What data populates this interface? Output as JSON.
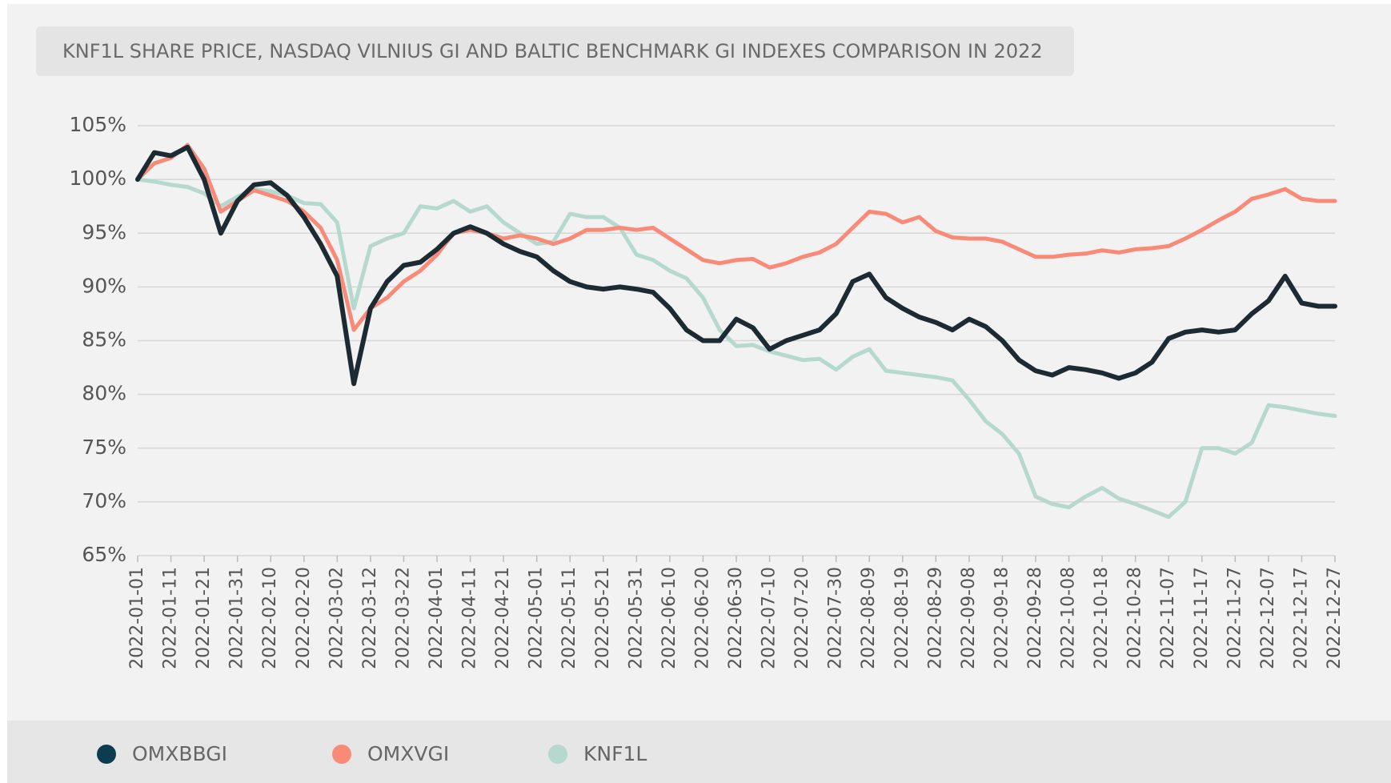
{
  "chart_data": {
    "type": "line",
    "title": "KNF1L SHARE PRICE, NASDAQ VILNIUS GI AND BALTIC BENCHMARK GI INDEXES COMPARISON IN 2022",
    "x": [
      "2022-01-01",
      "2022-01-06",
      "2022-01-11",
      "2022-01-16",
      "2022-01-21",
      "2022-01-26",
      "2022-01-31",
      "2022-02-05",
      "2022-02-10",
      "2022-02-15",
      "2022-02-20",
      "2022-02-25",
      "2022-03-02",
      "2022-03-07",
      "2022-03-12",
      "2022-03-17",
      "2022-03-22",
      "2022-03-27",
      "2022-04-01",
      "2022-04-06",
      "2022-04-11",
      "2022-04-16",
      "2022-04-21",
      "2022-04-26",
      "2022-05-01",
      "2022-05-06",
      "2022-05-11",
      "2022-05-16",
      "2022-05-21",
      "2022-05-26",
      "2022-05-31",
      "2022-06-05",
      "2022-06-10",
      "2022-06-15",
      "2022-06-20",
      "2022-06-25",
      "2022-06-30",
      "2022-07-05",
      "2022-07-10",
      "2022-07-15",
      "2022-07-20",
      "2022-07-25",
      "2022-07-30",
      "2022-08-04",
      "2022-08-09",
      "2022-08-14",
      "2022-08-19",
      "2022-08-24",
      "2022-08-29",
      "2022-09-03",
      "2022-09-08",
      "2022-09-13",
      "2022-09-18",
      "2022-09-23",
      "2022-09-28",
      "2022-10-03",
      "2022-10-08",
      "2022-10-13",
      "2022-10-18",
      "2022-10-23",
      "2022-10-28",
      "2022-11-02",
      "2022-11-07",
      "2022-11-12",
      "2022-11-17",
      "2022-11-22",
      "2022-11-27",
      "2022-12-02",
      "2022-12-07",
      "2022-12-12",
      "2022-12-17",
      "2022-12-22",
      "2022-12-27"
    ],
    "series": [
      {
        "name": "OMXBBGI",
        "color": "#1c2b33",
        "values": [
          100,
          102.5,
          102.2,
          103,
          100,
          95,
          98,
          99.5,
          99.7,
          98.5,
          96.5,
          94,
          91,
          81,
          88,
          90.5,
          92,
          92.3,
          93.5,
          95,
          95.6,
          95,
          94,
          93.3,
          92.8,
          91.5,
          90.5,
          90,
          89.8,
          90,
          89.8,
          89.5,
          88,
          86,
          85,
          85,
          87,
          86.2,
          84.2,
          85,
          85.5,
          86,
          87.5,
          90.5,
          91.2,
          89,
          88,
          87.2,
          86.7,
          86,
          87,
          86.3,
          85,
          83.2,
          82.2,
          81.8,
          82.5,
          82.3,
          82,
          81.5,
          82,
          83,
          85.2,
          85.8,
          86,
          85.8,
          86,
          87.5,
          88.7,
          91,
          88.5,
          88.2,
          88.2
        ]
      },
      {
        "name": "OMXVGI",
        "color": "#f98a78",
        "values": [
          100,
          101.5,
          102,
          103.2,
          101,
          97,
          98,
          99,
          98.5,
          98,
          97,
          95.5,
          92.5,
          86,
          88,
          89,
          90.5,
          91.5,
          93,
          95,
          95.3,
          95,
          94.5,
          94.8,
          94.5,
          94,
          94.5,
          95.3,
          95.3,
          95.5,
          95.3,
          95.5,
          94.5,
          93.5,
          92.5,
          92.2,
          92.5,
          92.6,
          91.8,
          92.2,
          92.8,
          93.2,
          94,
          95.5,
          97,
          96.8,
          96,
          96.5,
          95.2,
          94.6,
          94.5,
          94.5,
          94.2,
          93.5,
          92.8,
          92.8,
          93,
          93.1,
          93.4,
          93.2,
          93.5,
          93.6,
          93.8,
          94.5,
          95.3,
          96.2,
          97,
          98.2,
          98.6,
          99.1,
          98.2,
          98,
          98
        ]
      },
      {
        "name": "KNF1L",
        "color": "#b5d8cf",
        "values": [
          100,
          99.8,
          99.5,
          99.3,
          98.7,
          97.5,
          98.4,
          99.1,
          98.9,
          98.5,
          97.8,
          97.7,
          96,
          88,
          93.8,
          94.5,
          95,
          97.5,
          97.3,
          98,
          97,
          97.5,
          96,
          95,
          94,
          94.2,
          96.8,
          96.5,
          96.5,
          95.5,
          93,
          92.5,
          91.5,
          90.8,
          89,
          86,
          84.5,
          84.6,
          84,
          83.6,
          83.2,
          83.3,
          82.3,
          83.5,
          84.2,
          82.2,
          82,
          81.8,
          81.6,
          81.3,
          79.5,
          77.5,
          76.3,
          74.5,
          70.5,
          69.8,
          69.5,
          70.5,
          71.3,
          70.3,
          69.8,
          69.2,
          68.6,
          70,
          75,
          75,
          74.5,
          75.5,
          79,
          78.8,
          78.5,
          78.2,
          78
        ]
      }
    ],
    "ylim": [
      65,
      105
    ],
    "yticks": [
      {
        "value": 65,
        "label": "65%"
      },
      {
        "value": 70,
        "label": "70%"
      },
      {
        "value": 75,
        "label": "75%"
      },
      {
        "value": 80,
        "label": "80%"
      },
      {
        "value": 85,
        "label": "85%"
      },
      {
        "value": 90,
        "label": "90%"
      },
      {
        "value": 95,
        "label": "95%"
      },
      {
        "value": 100,
        "label": "100%"
      },
      {
        "value": 105,
        "label": "105%"
      }
    ],
    "xticks": [
      "2022-01-01",
      "2022-01-11",
      "2022-01-21",
      "2022-01-31",
      "2022-02-10",
      "2022-02-20",
      "2022-03-02",
      "2022-03-12",
      "2022-03-22",
      "2022-04-01",
      "2022-04-11",
      "2022-04-21",
      "2022-05-01",
      "2022-05-11",
      "2022-05-21",
      "2022-05-31",
      "2022-06-10",
      "2022-06-20",
      "2022-06-30",
      "2022-07-10",
      "2022-07-20",
      "2022-07-30",
      "2022-08-09",
      "2022-08-19",
      "2022-08-29",
      "2022-09-08",
      "2022-09-18",
      "2022-09-28",
      "2022-10-08",
      "2022-10-18",
      "2022-10-28",
      "2022-11-07",
      "2022-11-17",
      "2022-11-27",
      "2022-12-07",
      "2022-12-17",
      "2022-12-27"
    ],
    "grid": true
  }
}
